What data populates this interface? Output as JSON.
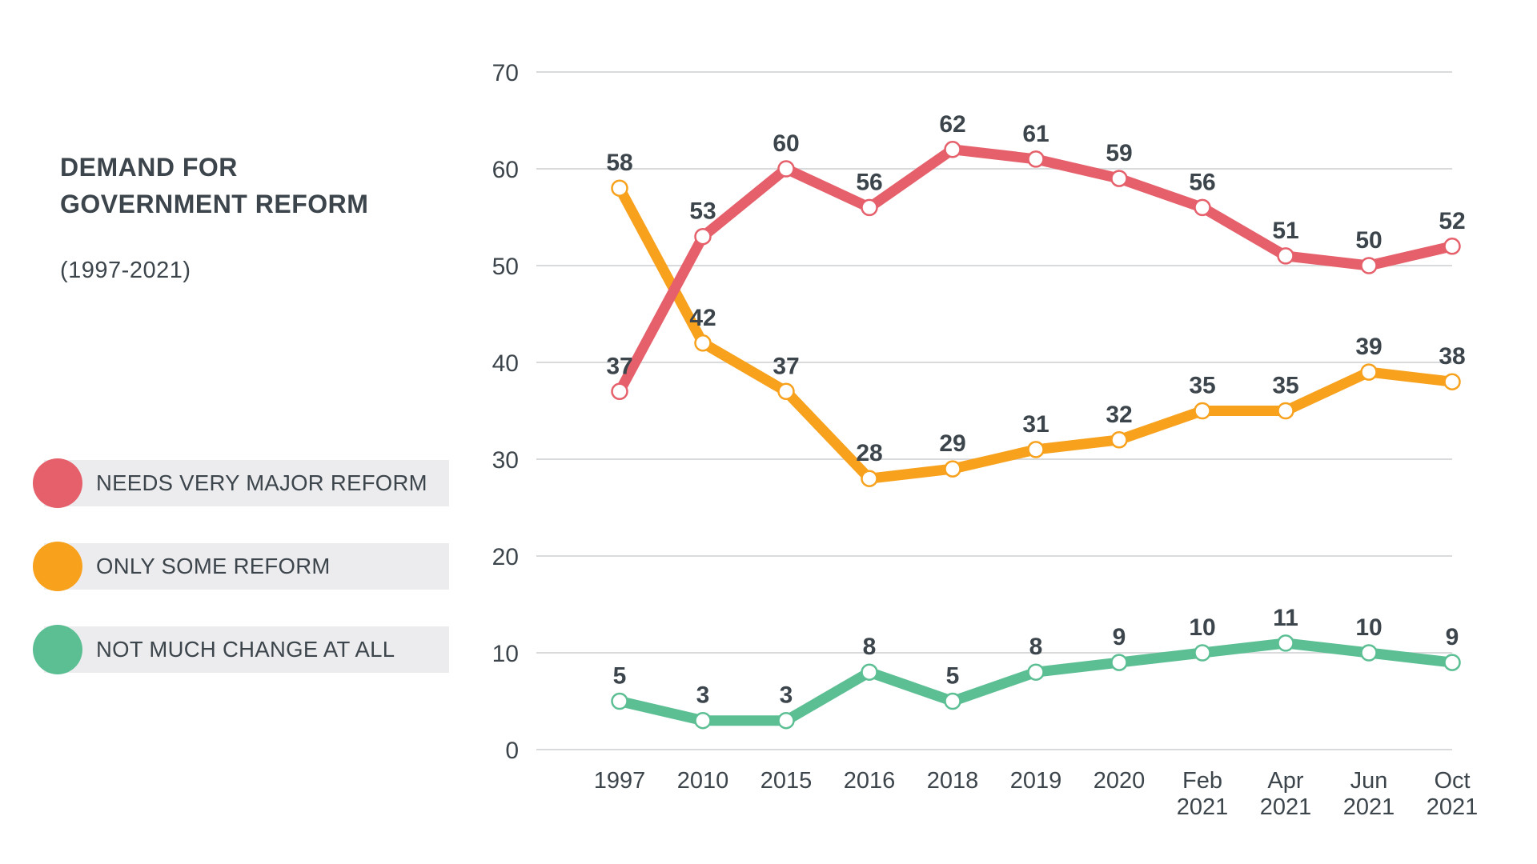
{
  "title": {
    "line1": "DEMAND FOR",
    "line2": "GOVERNMENT REFORM",
    "subtitle": "(1997-2021)"
  },
  "legend": [
    {
      "label": "NEEDS VERY MAJOR REFORM",
      "color": "#e5606a"
    },
    {
      "label": "ONLY SOME REFORM",
      "color": "#f7a11d"
    },
    {
      "label": "NOT MUCH CHANGE AT ALL",
      "color": "#5cbf94"
    }
  ],
  "colors": {
    "text_dark": "#3c454b",
    "gridline": "#d9dadb",
    "legend_bar_bg": "#ececee",
    "marker_fill": "#ffffff"
  },
  "chart_data": {
    "type": "line",
    "title": "DEMAND FOR GOVERNMENT REFORM",
    "subtitle": "(1997-2021)",
    "categories": [
      "1997",
      "2010",
      "2015",
      "2016",
      "2018",
      "2019",
      "2020",
      "Feb 2021",
      "Apr 2021",
      "Jun 2021",
      "Oct 2021"
    ],
    "series": [
      {
        "name": "NEEDS VERY MAJOR REFORM",
        "color": "#e5606a",
        "values": [
          37,
          53,
          60,
          56,
          62,
          61,
          59,
          56,
          51,
          50,
          52
        ]
      },
      {
        "name": "ONLY SOME REFORM",
        "color": "#f7a11d",
        "values": [
          58,
          42,
          37,
          28,
          29,
          31,
          32,
          35,
          35,
          39,
          38
        ]
      },
      {
        "name": "NOT MUCH CHANGE AT ALL",
        "color": "#5cbf94",
        "values": [
          5,
          3,
          3,
          8,
          5,
          8,
          9,
          10,
          11,
          10,
          9
        ]
      }
    ],
    "ylim": [
      0,
      70
    ],
    "ytick_step": 10,
    "ytick_labels": [
      "0",
      "10",
      "20",
      "30",
      "40",
      "50",
      "60",
      "70"
    ],
    "grid": "horizontal",
    "legend_position": "left",
    "data_labels": "shown above points"
  }
}
